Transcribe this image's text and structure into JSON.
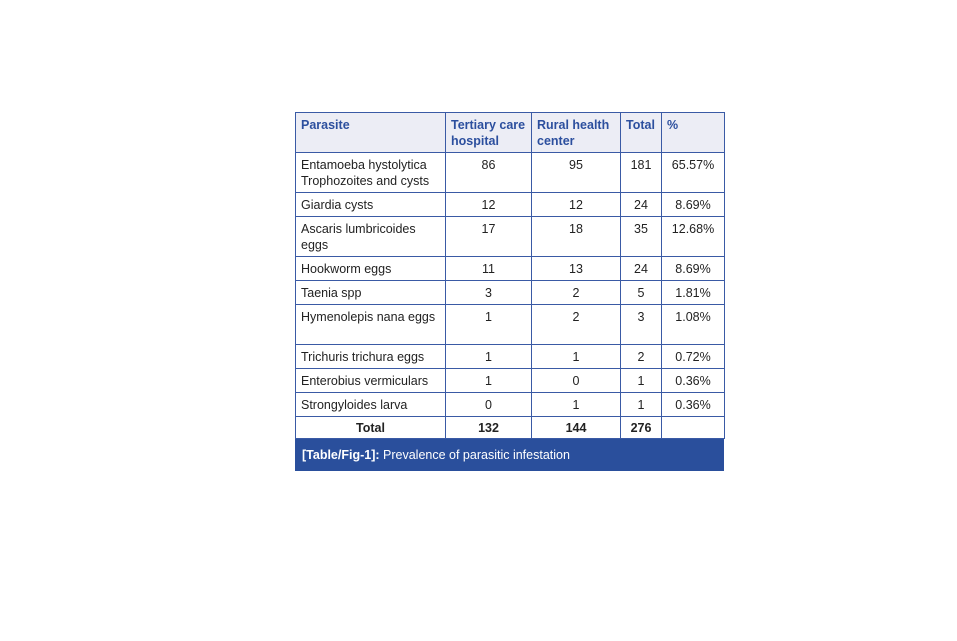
{
  "table": {
    "headers": [
      "Parasite",
      "Tertiary care hospital",
      "Rural health center",
      "Total",
      "%"
    ],
    "rows": [
      {
        "parasite": "Entamoeba hystolytica Trophozoites and cysts",
        "tertiary": "86",
        "rural": "95",
        "total": "181",
        "percent": "65.57%"
      },
      {
        "parasite": "Giardia cysts",
        "tertiary": "12",
        "rural": "12",
        "total": "24",
        "percent": "8.69%"
      },
      {
        "parasite": "Ascaris lumbricoides eggs",
        "tertiary": "17",
        "rural": "18",
        "total": "35",
        "percent": "12.68%"
      },
      {
        "parasite": "Hookworm eggs",
        "tertiary": "11",
        "rural": "13",
        "total": "24",
        "percent": "8.69%"
      },
      {
        "parasite": "Taenia spp",
        "tertiary": "3",
        "rural": "2",
        "total": "5",
        "percent": "1.81%"
      },
      {
        "parasite": "Hymenolepis nana eggs",
        "tertiary": "1",
        "rural": "2",
        "total": "3",
        "percent": "1.08%"
      },
      {
        "parasite": "Trichuris trichura eggs",
        "tertiary": "1",
        "rural": "1",
        "total": "2",
        "percent": "0.72%"
      },
      {
        "parasite": "Enterobius vermiculars",
        "tertiary": "1",
        "rural": "0",
        "total": "1",
        "percent": "0.36%"
      },
      {
        "parasite": "Strongyloides larva",
        "tertiary": "0",
        "rural": "1",
        "total": "1",
        "percent": "0.36%"
      }
    ],
    "total_row": {
      "label": "Total",
      "tertiary": "132",
      "rural": "144",
      "total": "276",
      "percent": ""
    }
  },
  "caption": {
    "label": "[Table/Fig-1]:",
    "text": " Prevalence of parasitic infestation"
  }
}
